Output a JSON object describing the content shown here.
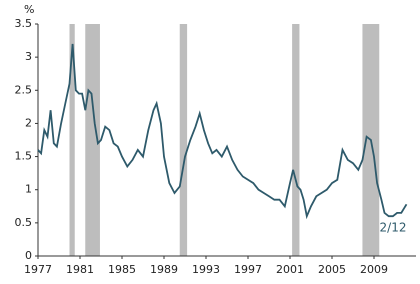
{
  "chart_data": {
    "type": "line",
    "unit_label": "%",
    "annotation": "2/12",
    "x": [
      1977.0,
      1977.3,
      1977.6,
      1977.9,
      1978.2,
      1978.5,
      1978.8,
      1979.2,
      1979.6,
      1980.0,
      1980.3,
      1980.6,
      1980.9,
      1981.2,
      1981.5,
      1981.8,
      1982.1,
      1982.4,
      1982.7,
      1983.0,
      1983.4,
      1983.8,
      1984.2,
      1984.6,
      1985.0,
      1985.5,
      1986.0,
      1986.5,
      1987.0,
      1987.5,
      1988.0,
      1988.3,
      1988.7,
      1989.0,
      1989.5,
      1990.0,
      1990.5,
      1991.0,
      1991.5,
      1992.0,
      1992.4,
      1992.8,
      1993.2,
      1993.6,
      1994.0,
      1994.5,
      1995.0,
      1995.5,
      1996.0,
      1996.5,
      1997.0,
      1997.5,
      1998.0,
      1998.5,
      1999.0,
      1999.5,
      2000.0,
      2000.5,
      2001.0,
      2001.3,
      2001.7,
      2002.0,
      2002.3,
      2002.6,
      2003.0,
      2003.5,
      2004.0,
      2004.5,
      2005.0,
      2005.5,
      2006.0,
      2006.5,
      2007.0,
      2007.5,
      2007.9,
      2008.3,
      2008.7,
      2009.0,
      2009.3,
      2009.7,
      2010.0,
      2010.4,
      2010.8,
      2011.2,
      2011.6,
      2012.1
    ],
    "series": [
      {
        "color": "#2e5a6b",
        "values": [
          1.6,
          1.55,
          1.9,
          1.8,
          2.2,
          1.7,
          1.65,
          2.0,
          2.3,
          2.6,
          3.2,
          2.5,
          2.45,
          2.45,
          2.2,
          2.5,
          2.45,
          2.0,
          1.7,
          1.75,
          1.95,
          1.9,
          1.7,
          1.65,
          1.5,
          1.35,
          1.45,
          1.6,
          1.5,
          1.9,
          2.2,
          2.3,
          2.0,
          1.5,
          1.1,
          0.95,
          1.05,
          1.5,
          1.75,
          1.95,
          2.15,
          1.9,
          1.7,
          1.55,
          1.6,
          1.5,
          1.65,
          1.45,
          1.3,
          1.2,
          1.15,
          1.1,
          1.0,
          0.95,
          0.9,
          0.85,
          0.85,
          0.75,
          1.1,
          1.3,
          1.05,
          1.0,
          0.85,
          0.6,
          0.75,
          0.9,
          0.95,
          1.0,
          1.1,
          1.15,
          1.6,
          1.45,
          1.4,
          1.3,
          1.45,
          1.8,
          1.75,
          1.5,
          1.1,
          0.85,
          0.65,
          0.6,
          0.6,
          0.65,
          0.65,
          0.78
        ]
      }
    ],
    "shaded_periods": [
      [
        1980.0,
        1980.5
      ],
      [
        1981.5,
        1982.9
      ],
      [
        1990.5,
        1991.2
      ],
      [
        2001.2,
        2001.9
      ],
      [
        2007.9,
        2009.5
      ]
    ],
    "shade_color": "#bdbdbd",
    "xlim": [
      1977,
      2013
    ],
    "xticks": [
      1977,
      1981,
      1985,
      1989,
      1993,
      1997,
      2001,
      2005,
      2009
    ],
    "ylim": [
      0,
      3.5
    ],
    "yticks": [
      0,
      0.5,
      1,
      1.5,
      2,
      2.5,
      3,
      3.5
    ]
  }
}
